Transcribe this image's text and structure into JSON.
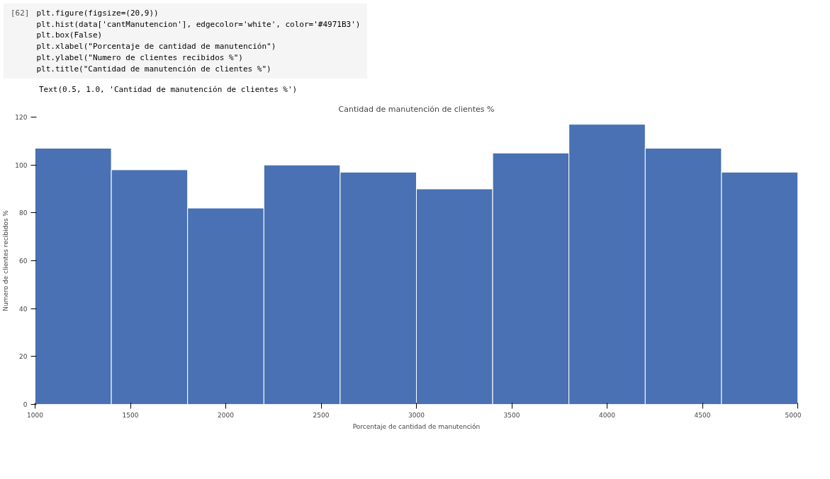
{
  "chart_data": {
    "type": "histogram",
    "title": "Cantidad de manutención de clientes %",
    "xlabel": "Porcentaje de cantidad de manutención",
    "ylabel": "Numero de clientes recibidos %",
    "annotations": [
      "[62]",
      "plt.figure(figsize=(20,9))",
      "plt.hist(data['cantManutencion'], edgecolor='white', color='#4971B3')",
      "plt.box(False)",
      "plt.xlabel(\"Porcentaje de cantidad de manutención\")",
      "plt.ylabel(\"Numero de clientes recibidos %\")",
      "plt.title(\"Cantidad de manutención de clientes %\")",
      "Text(0.5, 1.0, 'Cantidad de manutención de clientes %')"
    ],
    "bins": [
      1000,
      1400,
      1800,
      2200,
      2600,
      3000,
      3400,
      3800,
      4200,
      4600,
      5000
    ],
    "values": [
      107,
      98,
      82,
      100,
      97,
      90,
      105,
      117,
      107,
      97
    ],
    "color": "#4971b3",
    "xlim": [
      1000,
      5000
    ],
    "xticks": [
      1000,
      1500,
      2000,
      2500,
      3000,
      3500,
      4000,
      4500,
      5000
    ],
    "ylim": [
      0,
      120
    ],
    "yticks": [
      0,
      20,
      40,
      60,
      80,
      100,
      120
    ],
    "grid": false
  }
}
